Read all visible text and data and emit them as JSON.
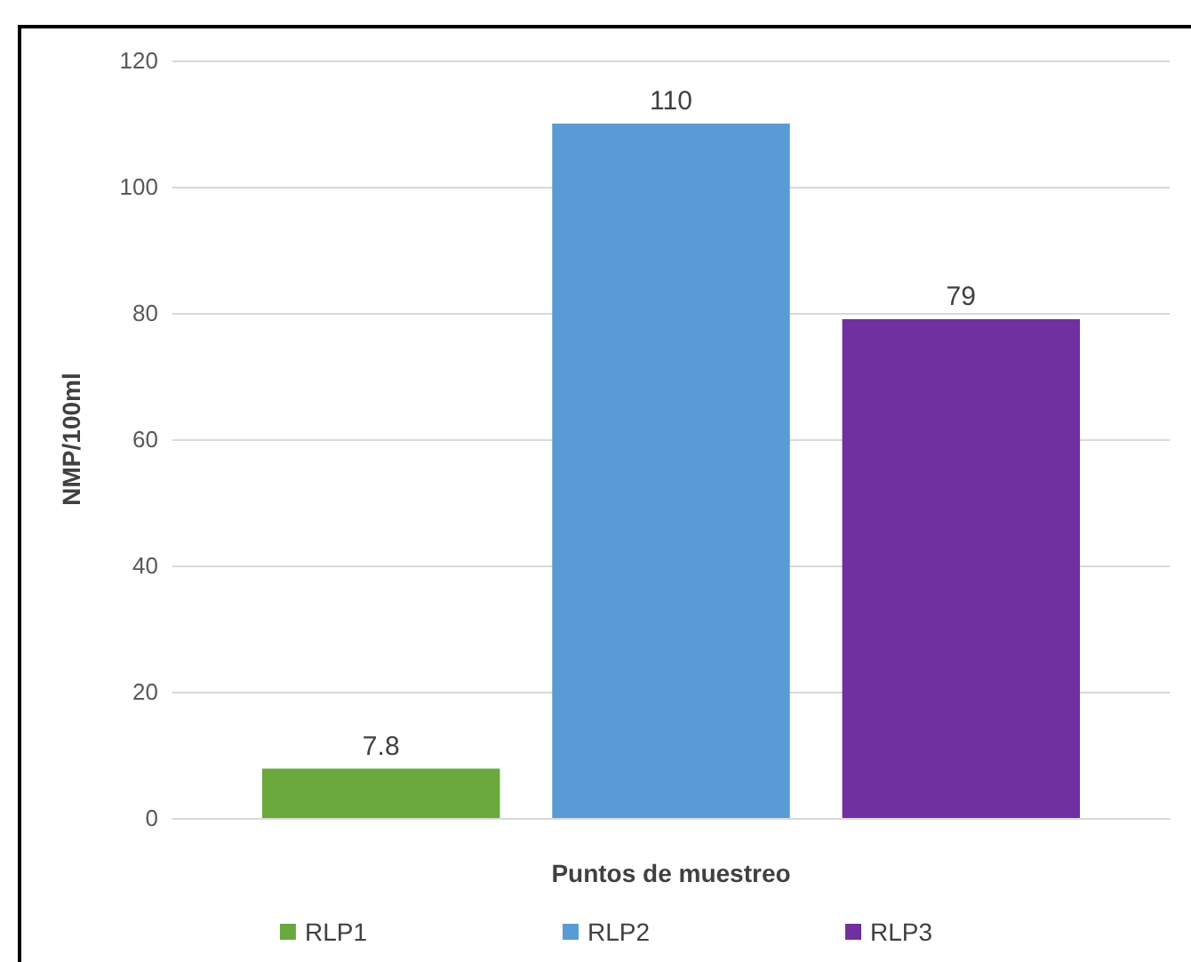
{
  "chart_data": {
    "type": "bar",
    "xlabel": "Puntos de muestreo",
    "ylabel": "NMP/100ml",
    "categories": [
      null
    ],
    "series": [
      {
        "name": "RLP1",
        "color": "#6aa83c",
        "values": [
          7.8
        ]
      },
      {
        "name": "RLP2",
        "color": "#5b9bd5",
        "values": [
          110
        ]
      },
      {
        "name": "RLP3",
        "color": "#7030a0",
        "values": [
          79
        ]
      }
    ],
    "ylim": [
      0,
      120
    ],
    "yticks": [
      0,
      20,
      40,
      60,
      80,
      100,
      120
    ],
    "grid": "y",
    "legend": "bottom",
    "data_labels": true
  }
}
